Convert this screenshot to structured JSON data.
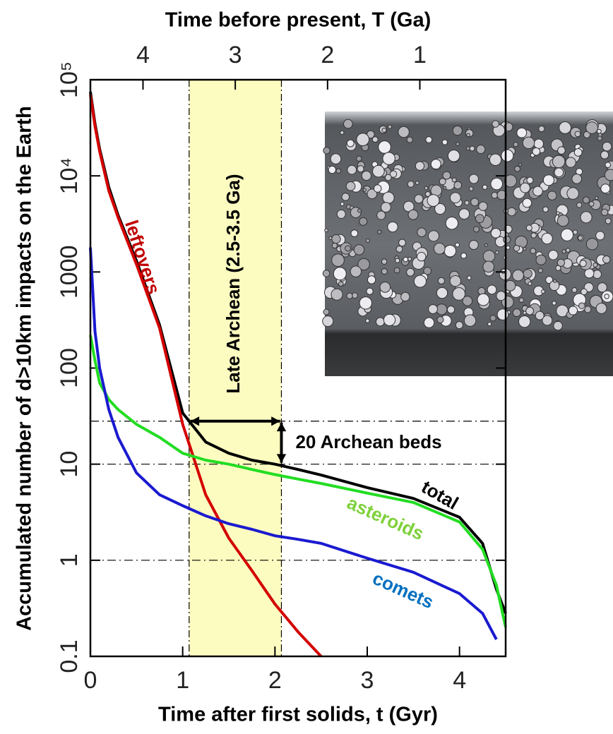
{
  "chart_data": {
    "type": "line",
    "title": "Time before present, T (Ga)",
    "xlabel": "Time after first solids, t (Gyr)",
    "ylabel": "Accumulated number of d>10km impacts on the Earth",
    "log_y": true,
    "xlim": [
      0,
      4.5
    ],
    "xticks": [
      0,
      1,
      2,
      3,
      4
    ],
    "ylim": [
      0.1,
      100000
    ],
    "yticks": [
      0.1,
      1,
      10,
      100,
      1000,
      {
        "value": 10000,
        "label": "10⁴"
      },
      {
        "value": 100000,
        "label": "10⁵"
      }
    ],
    "x2lim": [
      4.57,
      0.07
    ],
    "x2ticks": [
      4,
      3,
      2,
      1
    ],
    "x": [
      0,
      0.05,
      0.1,
      0.2,
      0.3,
      0.5,
      0.75,
      1.0,
      1.25,
      1.5,
      1.75,
      2.0,
      2.25,
      2.5,
      3.0,
      3.5,
      4.0,
      4.25,
      4.4,
      4.5
    ],
    "series": [
      {
        "name": "total",
        "color": "#000000",
        "values": [
          75000,
          35000,
          19000,
          7600,
          3900,
          1300,
          280,
          34,
          17,
          13,
          11,
          10,
          8.8,
          7.7,
          5.7,
          4.4,
          2.8,
          1.5,
          0.5,
          0.28
        ]
      },
      {
        "name": "leftovers",
        "color": "#d40000",
        "values": [
          70000,
          33000,
          18000,
          7000,
          3700,
          1200,
          260,
          26,
          4.8,
          1.7,
          0.78,
          0.35,
          0.18,
          0.1,
          null,
          null,
          null,
          null,
          null,
          null
        ]
      },
      {
        "name": "asteroids",
        "color": "#22dd22",
        "values": [
          220,
          120,
          70,
          47,
          37,
          26,
          19,
          13,
          11,
          10,
          8.8,
          7.8,
          7,
          6.3,
          5,
          4,
          2.5,
          1.3,
          0.55,
          0.2
        ]
      },
      {
        "name": "comets",
        "color": "#1a1ad0",
        "values": [
          1800,
          240,
          100,
          37,
          19,
          8.1,
          4.8,
          3.7,
          2.9,
          2.4,
          2.1,
          1.8,
          1.65,
          1.5,
          1.05,
          0.75,
          0.45,
          0.28,
          0.15,
          null
        ]
      }
    ],
    "hlines": [
      28,
      10,
      1
    ],
    "band": [
      1.07,
      2.07
    ],
    "annotations": [
      {
        "text": "leftovers",
        "color": "#c00000"
      },
      {
        "text": "total",
        "color": "#000000"
      },
      {
        "text": "asteroids",
        "color": "#7fd13b"
      },
      {
        "text": "comets",
        "color": "#0070c0"
      },
      {
        "text": "Late Archean (2.5-3.5 Ga)",
        "color": "#000000"
      },
      {
        "text": "20 Archean beds",
        "color": "#000000"
      }
    ],
    "grid": false
  }
}
